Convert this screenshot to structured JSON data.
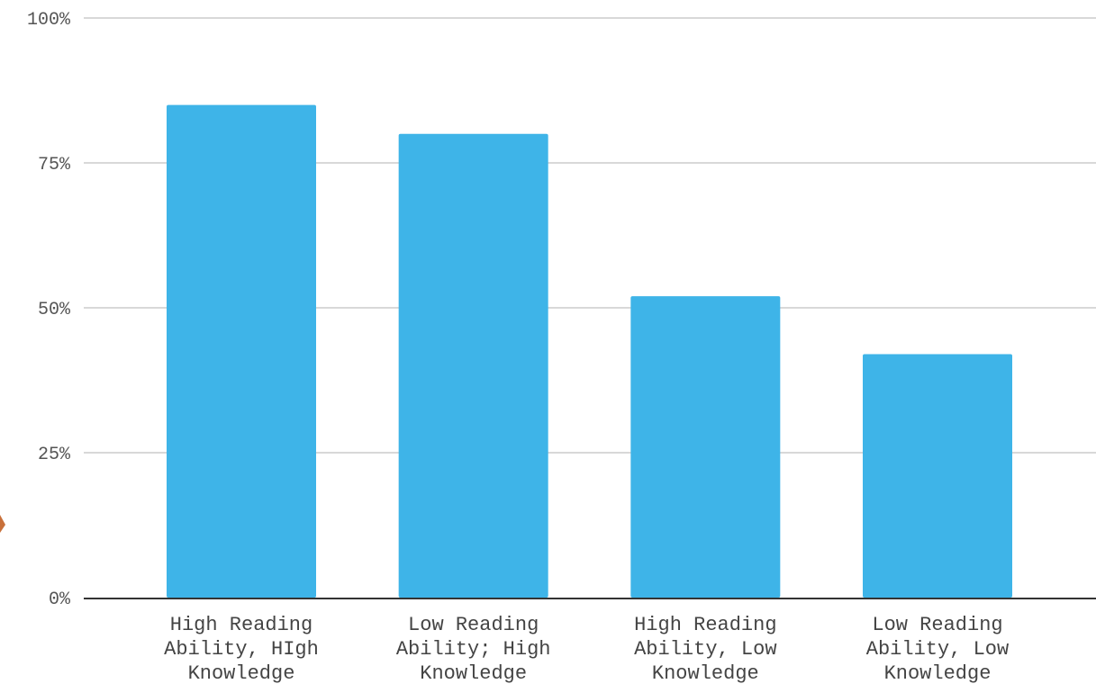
{
  "chart_data": {
    "type": "bar",
    "categories": [
      [
        "High Reading",
        "Ability, HIgh",
        "Knowledge"
      ],
      [
        "Low Reading",
        "Ability; High",
        "Knowledge"
      ],
      [
        "High Reading",
        "Ability, Low",
        "Knowledge"
      ],
      [
        "Low Reading",
        "Ability, Low",
        "Knowledge"
      ]
    ],
    "values": [
      85,
      80,
      52,
      42
    ],
    "ylim": [
      0,
      100
    ],
    "yticks": [
      0,
      25,
      50,
      75,
      100
    ],
    "ytick_labels": [
      "0%",
      "25%",
      "50%",
      "75%",
      "100%"
    ],
    "bar_color": "#3eb4e8",
    "grid": true,
    "title": "",
    "xlabel": "",
    "ylabel": ""
  }
}
